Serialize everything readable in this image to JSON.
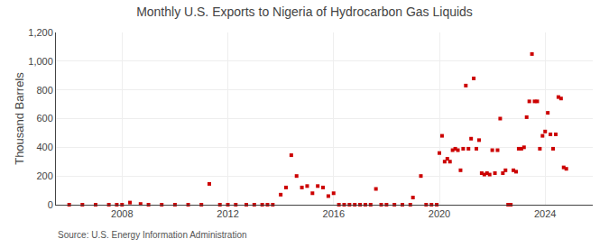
{
  "chart_data": {
    "type": "scatter",
    "title": "Monthly U.S. Exports to Nigeria of Hydrocarbon Gas Liquids",
    "ylabel": "Thousand Barrels",
    "annotations": [
      "Source: U.S. Energy Information Administration"
    ],
    "color": "#cc0000",
    "marker": "square",
    "grid": true,
    "xlim": [
      2005.5,
      2025.8
    ],
    "xticks": [
      2008,
      2012,
      2016,
      2020,
      2024
    ],
    "ylim": [
      0,
      1200
    ],
    "yticks": [
      0,
      200,
      400,
      600,
      800,
      {
        "value": 1000,
        "label": "1,000"
      },
      {
        "value": 1200,
        "label": "1,200"
      }
    ],
    "x": [
      2006.0,
      2006.5,
      2007.0,
      2007.5,
      2007.8,
      2008.0,
      2008.3,
      2008.7,
      2009.0,
      2009.5,
      2010.0,
      2010.5,
      2011.0,
      2011.3,
      2011.7,
      2012.0,
      2012.3,
      2012.7,
      2013.0,
      2013.3,
      2013.5,
      2013.7,
      2014.0,
      2014.2,
      2014.4,
      2014.6,
      2014.8,
      2015.0,
      2015.2,
      2015.4,
      2015.6,
      2015.8,
      2016.0,
      2016.2,
      2016.4,
      2016.6,
      2016.8,
      2017.0,
      2017.2,
      2017.4,
      2017.6,
      2017.8,
      2018.0,
      2018.3,
      2018.6,
      2018.9,
      2019.0,
      2019.3,
      2019.5,
      2019.7,
      2019.9,
      2020.0,
      2020.1,
      2020.2,
      2020.3,
      2020.4,
      2020.5,
      2020.6,
      2020.7,
      2020.8,
      2020.9,
      2021.0,
      2021.1,
      2021.2,
      2021.3,
      2021.4,
      2021.5,
      2021.6,
      2021.7,
      2021.8,
      2021.9,
      2022.0,
      2022.1,
      2022.2,
      2022.3,
      2022.4,
      2022.5,
      2022.6,
      2022.7,
      2022.8,
      2022.9,
      2023.0,
      2023.1,
      2023.2,
      2023.3,
      2023.4,
      2023.5,
      2023.6,
      2023.7,
      2023.8,
      2023.9,
      2024.0,
      2024.1,
      2024.2,
      2024.3,
      2024.4,
      2024.5,
      2024.6,
      2024.7,
      2024.8
    ],
    "values": [
      0,
      0,
      0,
      0,
      0,
      0,
      15,
      5,
      0,
      0,
      0,
      0,
      0,
      145,
      0,
      0,
      0,
      0,
      0,
      0,
      0,
      0,
      70,
      120,
      345,
      200,
      120,
      130,
      80,
      130,
      120,
      60,
      80,
      0,
      0,
      0,
      0,
      0,
      0,
      0,
      110,
      0,
      0,
      0,
      0,
      0,
      50,
      200,
      0,
      0,
      0,
      360,
      480,
      300,
      320,
      300,
      380,
      390,
      380,
      240,
      390,
      830,
      390,
      460,
      880,
      390,
      450,
      220,
      210,
      220,
      210,
      380,
      220,
      380,
      600,
      220,
      240,
      0,
      0,
      240,
      230,
      390,
      390,
      400,
      610,
      720,
      1050,
      720,
      720,
      390,
      480,
      510,
      640,
      490,
      390,
      490,
      750,
      740,
      260,
      250
    ]
  }
}
